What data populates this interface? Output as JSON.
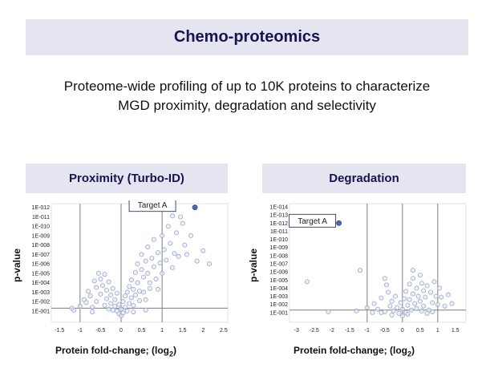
{
  "header": {
    "title": "Chemo-proteomics"
  },
  "subtitle": {
    "line1": "Proteome-wide profiling of up to 10K proteins to characterize",
    "line2": "MGD proximity, degradation and selectivity"
  },
  "colors": {
    "banner_bg": "#e4e5f0",
    "banner_text": "#15154f",
    "point": "#9aa6cc",
    "highlight": "#4a6aa8"
  },
  "chart_data": [
    {
      "type": "scatter",
      "title": "Proximity (Turbo-ID)",
      "xlabel": "Protein fold-change; (log",
      "xlabel_sub": "2",
      "xlabel_end": ")",
      "ylabel": "p-value",
      "xlim": [
        -1.7,
        2.6
      ],
      "ylim": [
        -0.2,
        12.4
      ],
      "x_ticks": [
        "-1.5",
        "-1",
        "-0.5",
        "0",
        "0.5",
        "1",
        "1.5",
        "2",
        "2.5"
      ],
      "x_tick_values": [
        -1.5,
        -1,
        -0.5,
        0,
        0.5,
        1,
        1.5,
        2,
        2.5
      ],
      "y_ticks": [
        "1E-001",
        "1E-002",
        "1E-003",
        "1E-004",
        "1E-005",
        "1E-006",
        "1E-007",
        "1E-008",
        "1E-009",
        "1E-010",
        "1E-011",
        "1E-012"
      ],
      "vlines": [
        -1,
        0,
        1
      ],
      "hline": 1.3,
      "annotation": {
        "label": "Target A",
        "x": 1.8,
        "y": 12.0
      },
      "highlight": {
        "x": 1.8,
        "y": 12.0
      },
      "points": [
        [
          -1.15,
          1.1
        ],
        [
          -1.0,
          1.5
        ],
        [
          -0.9,
          2.2
        ],
        [
          -0.85,
          1.9
        ],
        [
          -0.8,
          3.1
        ],
        [
          -0.75,
          2.6
        ],
        [
          -0.7,
          1.4
        ],
        [
          -0.65,
          4.2
        ],
        [
          -0.6,
          3.5
        ],
        [
          -0.6,
          2.0
        ],
        [
          -0.55,
          5.0
        ],
        [
          -0.5,
          4.4
        ],
        [
          -0.5,
          2.8
        ],
        [
          -0.45,
          3.7
        ],
        [
          -0.4,
          1.6
        ],
        [
          -0.4,
          4.9
        ],
        [
          -0.35,
          3.2
        ],
        [
          -0.35,
          2.3
        ],
        [
          -0.3,
          1.2
        ],
        [
          -0.3,
          4.1
        ],
        [
          -0.25,
          2.7
        ],
        [
          -0.25,
          1.8
        ],
        [
          -0.2,
          3.4
        ],
        [
          -0.2,
          1.1
        ],
        [
          -0.15,
          2.2
        ],
        [
          -0.15,
          1.5
        ],
        [
          -0.1,
          1.0
        ],
        [
          -0.1,
          2.9
        ],
        [
          -0.05,
          0.7
        ],
        [
          -0.05,
          1.7
        ],
        [
          0.0,
          0.5
        ],
        [
          0.0,
          1.2
        ],
        [
          0.05,
          0.8
        ],
        [
          0.05,
          2.0
        ],
        [
          0.1,
          1.4
        ],
        [
          0.1,
          2.6
        ],
        [
          0.15,
          1.0
        ],
        [
          0.15,
          3.0
        ],
        [
          0.2,
          1.8
        ],
        [
          0.2,
          3.6
        ],
        [
          0.25,
          2.4
        ],
        [
          0.25,
          4.3
        ],
        [
          0.3,
          1.6
        ],
        [
          0.3,
          3.3
        ],
        [
          0.35,
          5.1
        ],
        [
          0.35,
          2.7
        ],
        [
          0.4,
          4.0
        ],
        [
          0.4,
          6.0
        ],
        [
          0.45,
          3.1
        ],
        [
          0.45,
          2.1
        ],
        [
          0.5,
          5.4
        ],
        [
          0.5,
          7.0
        ],
        [
          0.55,
          4.6
        ],
        [
          0.55,
          3.0
        ],
        [
          0.6,
          6.3
        ],
        [
          0.6,
          2.2
        ],
        [
          0.65,
          5.0
        ],
        [
          0.65,
          7.8
        ],
        [
          0.7,
          4.0
        ],
        [
          0.7,
          3.4
        ],
        [
          0.75,
          6.6
        ],
        [
          0.8,
          5.7
        ],
        [
          0.8,
          8.6
        ],
        [
          0.85,
          4.4
        ],
        [
          0.9,
          7.2
        ],
        [
          0.9,
          3.3
        ],
        [
          0.95,
          6.1
        ],
        [
          1.0,
          9.0
        ],
        [
          1.0,
          5.0
        ],
        [
          1.05,
          7.5
        ],
        [
          1.1,
          6.4
        ],
        [
          1.15,
          10.0
        ],
        [
          1.2,
          8.2
        ],
        [
          1.25,
          5.6
        ],
        [
          1.3,
          7.1
        ],
        [
          1.35,
          9.3
        ],
        [
          1.4,
          6.8
        ],
        [
          1.5,
          10.3
        ],
        [
          1.55,
          8.0
        ],
        [
          1.6,
          7.0
        ],
        [
          1.7,
          9.0
        ],
        [
          1.85,
          6.3
        ],
        [
          2.0,
          7.4
        ],
        [
          2.15,
          6.0
        ],
        [
          1.45,
          11.0
        ],
        [
          1.25,
          11.1
        ],
        [
          -1.2,
          1.3
        ],
        [
          0.3,
          0.9
        ],
        [
          -0.7,
          0.9
        ],
        [
          0.6,
          1.1
        ]
      ]
    },
    {
      "type": "scatter",
      "title": "Degradation",
      "xlabel": "Protein fold-change; (log",
      "xlabel_sub": "2",
      "xlabel_end": ")",
      "ylabel": "p-value",
      "xlim": [
        -3.2,
        1.8
      ],
      "ylim": [
        -0.2,
        14.4
      ],
      "x_ticks": [
        "-3",
        "-2.5",
        "-2",
        "-1.5",
        "-1",
        "-0.5",
        "0",
        "0.5",
        "1",
        "1.5"
      ],
      "x_tick_values": [
        -3,
        -2.5,
        -2,
        -1.5,
        -1,
        -0.5,
        0,
        0.5,
        1,
        1.5
      ],
      "y_ticks": [
        "1E-001",
        "1E-002",
        "1E-003",
        "1E-004",
        "1E-005",
        "1E-006",
        "1E-007",
        "1E-008",
        "1E-009",
        "1E-010",
        "1E-011",
        "1E-012",
        "1E-013",
        "1E-014"
      ],
      "vlines": [
        -1,
        0,
        1
      ],
      "hline": 1.3,
      "annotation": {
        "label": "Target A",
        "x": -1.8,
        "y": 12.0
      },
      "highlight": {
        "x": -1.8,
        "y": 12.0
      },
      "points": [
        [
          -2.7,
          4.8
        ],
        [
          -2.1,
          1.1
        ],
        [
          -1.2,
          6.2
        ],
        [
          -1.3,
          1.2
        ],
        [
          -1.0,
          1.6
        ],
        [
          -0.85,
          1.0
        ],
        [
          -0.8,
          2.1
        ],
        [
          -0.7,
          1.4
        ],
        [
          -0.6,
          2.8
        ],
        [
          -0.5,
          1.1
        ],
        [
          -0.45,
          4.4
        ],
        [
          -0.4,
          3.5
        ],
        [
          -0.35,
          1.8
        ],
        [
          -0.3,
          2.4
        ],
        [
          -0.25,
          1.2
        ],
        [
          -0.2,
          3.0
        ],
        [
          -0.15,
          1.6
        ],
        [
          -0.1,
          0.9
        ],
        [
          -0.05,
          2.2
        ],
        [
          0.0,
          0.6
        ],
        [
          0.0,
          1.4
        ],
        [
          0.05,
          2.7
        ],
        [
          0.1,
          1.0
        ],
        [
          0.1,
          3.6
        ],
        [
          0.15,
          1.9
        ],
        [
          0.2,
          4.5
        ],
        [
          0.2,
          2.6
        ],
        [
          0.25,
          1.3
        ],
        [
          0.3,
          3.3
        ],
        [
          0.3,
          5.2
        ],
        [
          0.35,
          2.1
        ],
        [
          0.4,
          4.0
        ],
        [
          0.4,
          1.5
        ],
        [
          0.45,
          3.0
        ],
        [
          0.5,
          5.6
        ],
        [
          0.5,
          2.4
        ],
        [
          0.55,
          4.6
        ],
        [
          0.6,
          1.8
        ],
        [
          0.6,
          3.7
        ],
        [
          0.65,
          2.9
        ],
        [
          0.7,
          4.3
        ],
        [
          0.75,
          1.3
        ],
        [
          0.8,
          3.5
        ],
        [
          0.85,
          2.2
        ],
        [
          0.9,
          4.8
        ],
        [
          0.95,
          3.0
        ],
        [
          1.0,
          2.0
        ],
        [
          1.05,
          4.0
        ],
        [
          1.1,
          2.9
        ],
        [
          1.2,
          1.8
        ],
        [
          1.3,
          3.2
        ],
        [
          1.4,
          2.1
        ],
        [
          0.3,
          6.2
        ],
        [
          -0.5,
          5.2
        ],
        [
          0.15,
          0.8
        ],
        [
          -0.3,
          0.7
        ],
        [
          0.55,
          1.2
        ],
        [
          0.7,
          0.9
        ],
        [
          -0.6,
          1.0
        ],
        [
          0.85,
          1.1
        ]
      ]
    }
  ]
}
